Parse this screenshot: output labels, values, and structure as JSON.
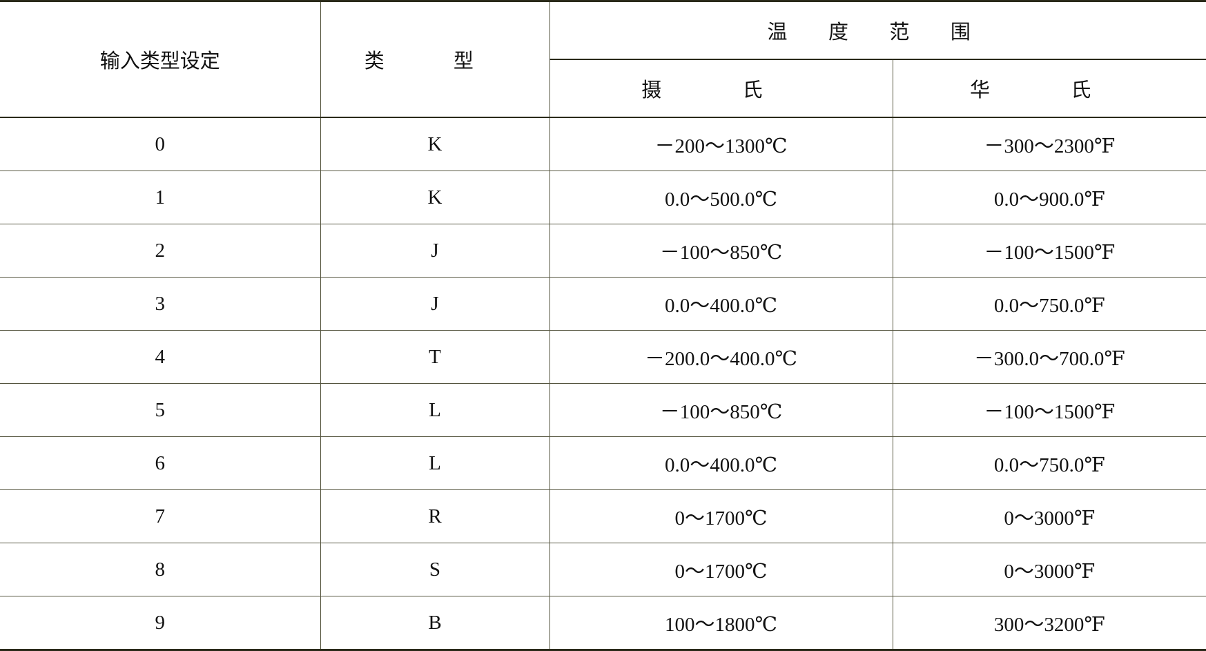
{
  "header": {
    "input_type_setting": "输入类型设定",
    "type": "类 型",
    "temperature_range": "温 度 范 围",
    "celsius": "摄 氏",
    "fahrenheit": "华 氏"
  },
  "rows": [
    {
      "setting": "0",
      "type": "K",
      "celsius": "－200～1300℃",
      "fahrenheit": "－300～2300℉"
    },
    {
      "setting": "1",
      "type": "K",
      "celsius": "0.0～500.0℃",
      "fahrenheit": "0.0～900.0℉"
    },
    {
      "setting": "2",
      "type": "J",
      "celsius": "－100～850℃",
      "fahrenheit": "－100～1500℉"
    },
    {
      "setting": "3",
      "type": "J",
      "celsius": "0.0～400.0℃",
      "fahrenheit": "0.0～750.0℉"
    },
    {
      "setting": "4",
      "type": "T",
      "celsius": "－200.0～400.0℃",
      "fahrenheit": "－300.0～700.0℉"
    },
    {
      "setting": "5",
      "type": "L",
      "celsius": "－100～850℃",
      "fahrenheit": "－100～1500℉"
    },
    {
      "setting": "6",
      "type": "L",
      "celsius": "0.0～400.0℃",
      "fahrenheit": "0.0～750.0℉"
    },
    {
      "setting": "7",
      "type": "R",
      "celsius": "0～1700℃",
      "fahrenheit": "0～3000℉"
    },
    {
      "setting": "8",
      "type": "S",
      "celsius": "0～1700℃",
      "fahrenheit": "0～3000℉"
    },
    {
      "setting": "9",
      "type": "B",
      "celsius": "100～1800℃",
      "fahrenheit": "300～3200℉"
    }
  ]
}
